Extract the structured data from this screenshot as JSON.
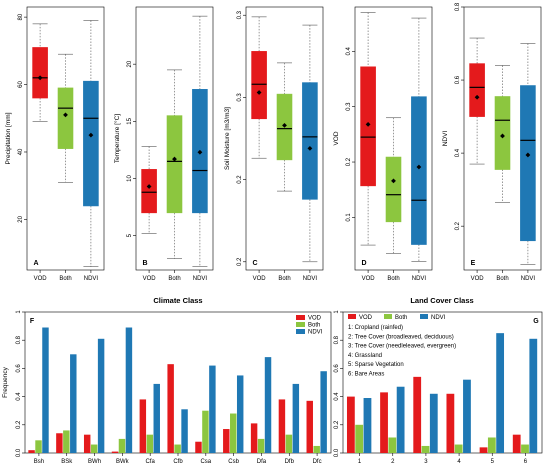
{
  "chart_data": [
    {
      "type": "box",
      "panel_label": "A",
      "ylabel": "Precipitation [mm]",
      "ylim": [
        5,
        83
      ],
      "yticks": [
        20,
        40,
        60,
        80
      ],
      "categories": [
        "VOD",
        "Both",
        "NDVI"
      ],
      "boxes": [
        {
          "min": 49,
          "q1": 56,
          "median": 62,
          "q3": 71,
          "max": 78,
          "mean": 62
        },
        {
          "min": 31,
          "q1": 41,
          "median": 53,
          "q3": 59,
          "max": 69,
          "mean": 51
        },
        {
          "min": 6,
          "q1": 24,
          "median": 50,
          "q3": 61,
          "max": 79,
          "mean": 45
        }
      ]
    },
    {
      "type": "box",
      "panel_label": "B",
      "ylabel": "Temperature [°C]",
      "ylim": [
        2,
        25
      ],
      "yticks": [
        5,
        10,
        15,
        20
      ],
      "categories": [
        "VOD",
        "Both",
        "NDVI"
      ],
      "boxes": [
        {
          "min": 5.2,
          "q1": 7,
          "median": 8.8,
          "q3": 10.8,
          "max": 12.8,
          "mean": 9.3
        },
        {
          "min": 3,
          "q1": 7,
          "median": 11.5,
          "q3": 15.5,
          "max": 19.5,
          "mean": 11.7
        },
        {
          "min": 2.3,
          "q1": 7,
          "median": 10.7,
          "q3": 17.8,
          "max": 24.2,
          "mean": 12.3
        }
      ]
    },
    {
      "type": "box",
      "panel_label": "C",
      "ylabel": "Soil Moisture [m3/m3]",
      "ylim": [
        0.145,
        0.305
      ],
      "yticks": [
        0.15,
        0.2,
        0.25,
        0.3
      ],
      "categories": [
        "VOD",
        "Both",
        "NDVI"
      ],
      "boxes": [
        {
          "min": 0.213,
          "q1": 0.237,
          "median": 0.258,
          "q3": 0.278,
          "max": 0.299,
          "mean": 0.253
        },
        {
          "min": 0.193,
          "q1": 0.212,
          "median": 0.231,
          "q3": 0.252,
          "max": 0.271,
          "mean": 0.233
        },
        {
          "min": 0.15,
          "q1": 0.188,
          "median": 0.226,
          "q3": 0.259,
          "max": 0.294,
          "mean": 0.219
        }
      ]
    },
    {
      "type": "box",
      "panel_label": "D",
      "ylabel": "VOD",
      "ylim": [
        0.005,
        0.48
      ],
      "yticks": [
        0.1,
        0.2,
        0.3,
        0.4
      ],
      "categories": [
        "VOD",
        "Both",
        "NDVI"
      ],
      "boxes": [
        {
          "min": 0.05,
          "q1": 0.157,
          "median": 0.245,
          "q3": 0.372,
          "max": 0.47,
          "mean": 0.268
        },
        {
          "min": 0.035,
          "q1": 0.092,
          "median": 0.141,
          "q3": 0.209,
          "max": 0.28,
          "mean": 0.166
        },
        {
          "min": 0.02,
          "q1": 0.051,
          "median": 0.131,
          "q3": 0.318,
          "max": 0.46,
          "mean": 0.191
        }
      ]
    },
    {
      "type": "box",
      "panel_label": "E",
      "ylabel": "NDVI",
      "ylim": [
        0.08,
        0.8
      ],
      "yticks": [
        0.2,
        0.4,
        0.6,
        0.8
      ],
      "categories": [
        "VOD",
        "Both",
        "NDVI"
      ],
      "boxes": [
        {
          "min": 0.37,
          "q1": 0.5,
          "median": 0.58,
          "q3": 0.645,
          "max": 0.715,
          "mean": 0.553
        },
        {
          "min": 0.265,
          "q1": 0.355,
          "median": 0.49,
          "q3": 0.555,
          "max": 0.64,
          "mean": 0.447
        },
        {
          "min": 0.095,
          "q1": 0.16,
          "median": 0.435,
          "q3": 0.585,
          "max": 0.7,
          "mean": 0.395
        }
      ]
    },
    {
      "type": "bar",
      "title": "Climate Class",
      "panel_label": "F",
      "ylabel": "Frequency",
      "ylim": [
        0,
        1
      ],
      "yticks": [
        0,
        0.2,
        0.4,
        0.6,
        0.8,
        1.0
      ],
      "categories": [
        "Bsh",
        "BSk",
        "BWh",
        "BWk",
        "Cfa",
        "Cfb",
        "Csa",
        "Csb",
        "Dfa",
        "Dfb",
        "Dfc"
      ],
      "series": [
        {
          "name": "VOD",
          "color": "#e41a1c",
          "values": [
            0.02,
            0.14,
            0.13,
            0.01,
            0.38,
            0.63,
            0.08,
            0.17,
            0.21,
            0.38,
            0.37
          ]
        },
        {
          "name": "Both",
          "color": "#8cc63f",
          "values": [
            0.09,
            0.16,
            0.06,
            0.1,
            0.13,
            0.06,
            0.3,
            0.28,
            0.1,
            0.13,
            0.05
          ]
        },
        {
          "name": "NDVI",
          "color": "#1f78b4",
          "values": [
            0.89,
            0.7,
            0.81,
            0.89,
            0.49,
            0.31,
            0.62,
            0.55,
            0.68,
            0.49,
            0.58
          ]
        }
      ],
      "legend": {
        "position": "top-right"
      }
    },
    {
      "type": "bar",
      "title": "Land Cover Class",
      "panel_label": "G",
      "ylabel": "",
      "ylim": [
        0,
        1
      ],
      "yticks": [
        0,
        0.2,
        0.4,
        0.6,
        0.8,
        1.0
      ],
      "categories": [
        "1",
        "2",
        "3",
        "4",
        "5",
        "6"
      ],
      "series": [
        {
          "name": "VOD",
          "color": "#e41a1c",
          "values": [
            0.4,
            0.43,
            0.54,
            0.42,
            0.04,
            0.13
          ]
        },
        {
          "name": "Both",
          "color": "#8cc63f",
          "values": [
            0.2,
            0.11,
            0.05,
            0.06,
            0.11,
            0.06
          ]
        },
        {
          "name": "NDVI",
          "color": "#1f78b4",
          "values": [
            0.39,
            0.47,
            0.42,
            0.52,
            0.85,
            0.81
          ]
        }
      ],
      "legend": {
        "position": "top-left"
      },
      "class_notes": [
        "1: Cropland (rainfed)",
        "2: Tree Cover (broadleaved, deciduous)",
        "3: Tree Cover (needleleaved, evergreen)",
        "4: Grassland",
        "5: Sparse Vegetation",
        "6: Bare Areas"
      ]
    }
  ],
  "box_colors": [
    "#e41a1c",
    "#8cc63f",
    "#1f78b4"
  ]
}
